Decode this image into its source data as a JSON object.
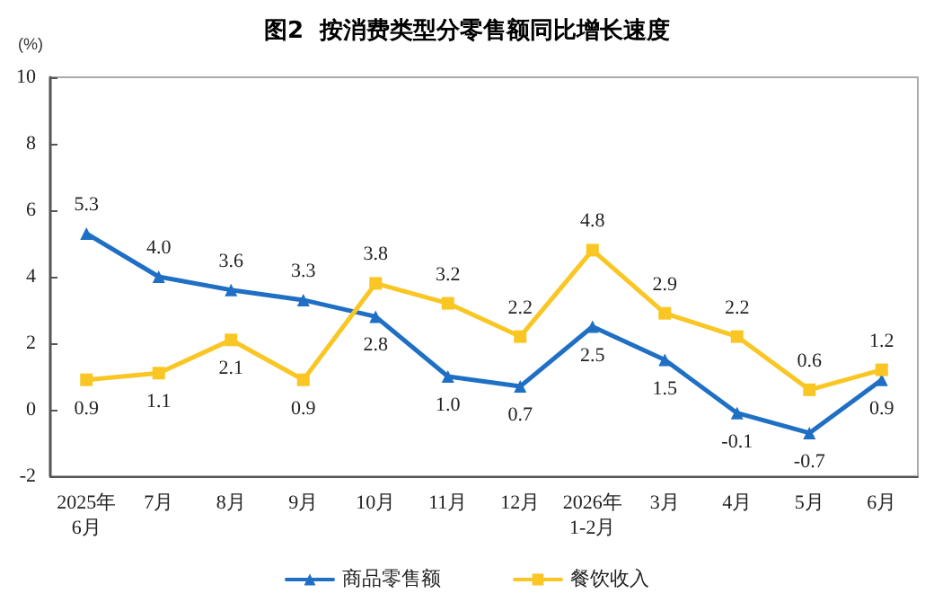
{
  "chart_data": {
    "type": "line",
    "title": "图2  按消费类型分零售额同比增长速度",
    "ylabel": "(%)",
    "categories": [
      "2025年\n6月",
      "7月",
      "8月",
      "9月",
      "10月",
      "11月",
      "12月",
      "2026年\n1-2月",
      "3月",
      "4月",
      "5月",
      "6月"
    ],
    "series": [
      {
        "name": "商品零售额",
        "color": "#1f6fc5",
        "marker": "triangle",
        "values": [
          5.3,
          4.0,
          3.6,
          3.3,
          2.8,
          1.0,
          0.7,
          2.5,
          1.5,
          -0.1,
          -0.7,
          0.9
        ],
        "value_labels": [
          "5.3",
          "4.0",
          "3.6",
          "3.3",
          "2.8",
          "1.0",
          "0.7",
          "2.5",
          "1.5",
          "-0.1",
          "-0.7",
          "0.9"
        ]
      },
      {
        "name": "餐饮收入",
        "color": "#f9c623",
        "marker": "square",
        "values": [
          0.9,
          1.1,
          2.1,
          0.9,
          3.8,
          3.2,
          2.2,
          4.8,
          2.9,
          2.2,
          0.6,
          1.2
        ],
        "value_labels": [
          "0.9",
          "1.1",
          "2.1",
          "0.9",
          "3.8",
          "3.2",
          "2.2",
          "4.8",
          "2.9",
          "2.2",
          "0.6",
          "1.2"
        ]
      }
    ],
    "ylim": [
      -2,
      10
    ],
    "yticks": [
      -2,
      0,
      2,
      4,
      6,
      8,
      10
    ],
    "legend": "bottom",
    "line_style": "solid"
  }
}
